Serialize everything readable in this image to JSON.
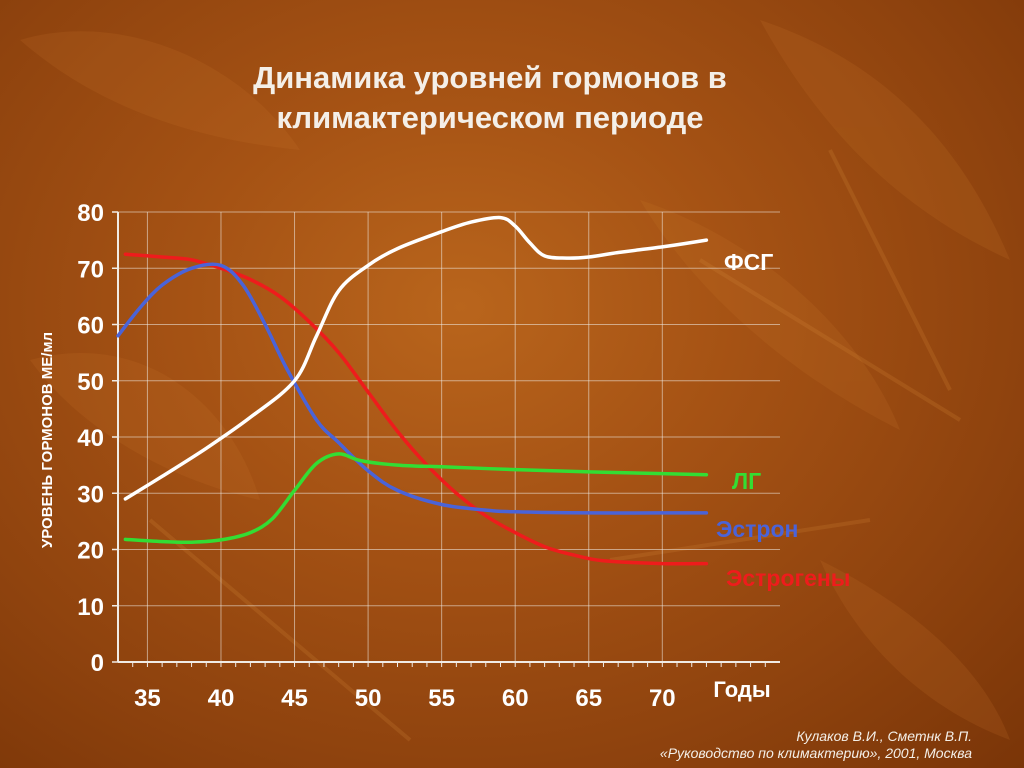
{
  "title": {
    "line1": "Динамика уровней гормонов в",
    "line2": "климактерическом периоде"
  },
  "citation": {
    "line1": "Кулаков В.И., Сметнк В.П.",
    "line2": "«Руководство по климактерию», 2001, Москва"
  },
  "colors": {
    "background": "#a04f12",
    "axis": "#f0ece6",
    "fsg": "#ffffff",
    "lg": "#33dd33",
    "estron": "#4a63d8",
    "estrogeny": "#ee1c1c"
  },
  "chart_data": {
    "type": "line",
    "ylabel": "УРОВЕНЬ ГОРМОНОВ МЕ/мл",
    "xlabel": "Годы",
    "ylim": [
      0,
      80
    ],
    "xlim": [
      33,
      78
    ],
    "yticks": [
      "0",
      "10",
      "20",
      "30",
      "40",
      "50",
      "60",
      "70",
      "80"
    ],
    "xticks": [
      "35",
      "40",
      "45",
      "50",
      "55",
      "60",
      "65",
      "70"
    ],
    "xtick_values": [
      35,
      40,
      45,
      50,
      55,
      60,
      65,
      70
    ],
    "grid": true,
    "series": [
      {
        "name": "ФСГ",
        "color": "#ffffff",
        "x": [
          33.5,
          36,
          39,
          42,
          45,
          46.5,
          48,
          50,
          52,
          55,
          57,
          59,
          60,
          61,
          62,
          63.5,
          65,
          67,
          70,
          73
        ],
        "y": [
          29,
          33,
          38,
          43.5,
          50,
          58,
          66,
          70.5,
          73.5,
          76.5,
          78.2,
          79,
          77.5,
          74.5,
          72.2,
          71.8,
          72,
          72.8,
          73.8,
          75
        ]
      },
      {
        "name": "ЛГ",
        "color": "#33dd33",
        "x": [
          33.5,
          36,
          38,
          40,
          42,
          43.5,
          45,
          46.5,
          48,
          49.5,
          52,
          55,
          60,
          65,
          70,
          73
        ],
        "y": [
          21.8,
          21.4,
          21.3,
          21.7,
          23,
          25.5,
          30.5,
          35.3,
          37,
          35.8,
          35,
          34.7,
          34.2,
          33.8,
          33.5,
          33.3
        ]
      },
      {
        "name": "Эстрон",
        "color": "#4a63d8",
        "x": [
          33,
          34.5,
          36,
          38,
          40,
          41.5,
          43,
          44.5,
          46.5,
          48,
          50,
          52,
          55,
          58,
          60,
          65,
          70,
          73
        ],
        "y": [
          58,
          63,
          67,
          70,
          70.5,
          67,
          60,
          52,
          43,
          39,
          34,
          30.5,
          28,
          27,
          26.7,
          26.5,
          26.5,
          26.5
        ]
      },
      {
        "name": "Эстрогены",
        "color": "#ee1c1c",
        "x": [
          33.5,
          36,
          38,
          40,
          42,
          44,
          46,
          48,
          50,
          52,
          54,
          56,
          58,
          60,
          62,
          64,
          66,
          70,
          73
        ],
        "y": [
          72.5,
          72,
          71.5,
          70,
          68,
          65,
          60.5,
          55,
          48,
          41,
          35,
          30,
          26,
          23,
          20.5,
          19,
          18,
          17.5,
          17.5
        ]
      }
    ],
    "labels": {
      "fsg": "ФСГ",
      "lg": "ЛГ",
      "estron": "Эстрон",
      "estrogeny": "Эстрогены"
    }
  }
}
